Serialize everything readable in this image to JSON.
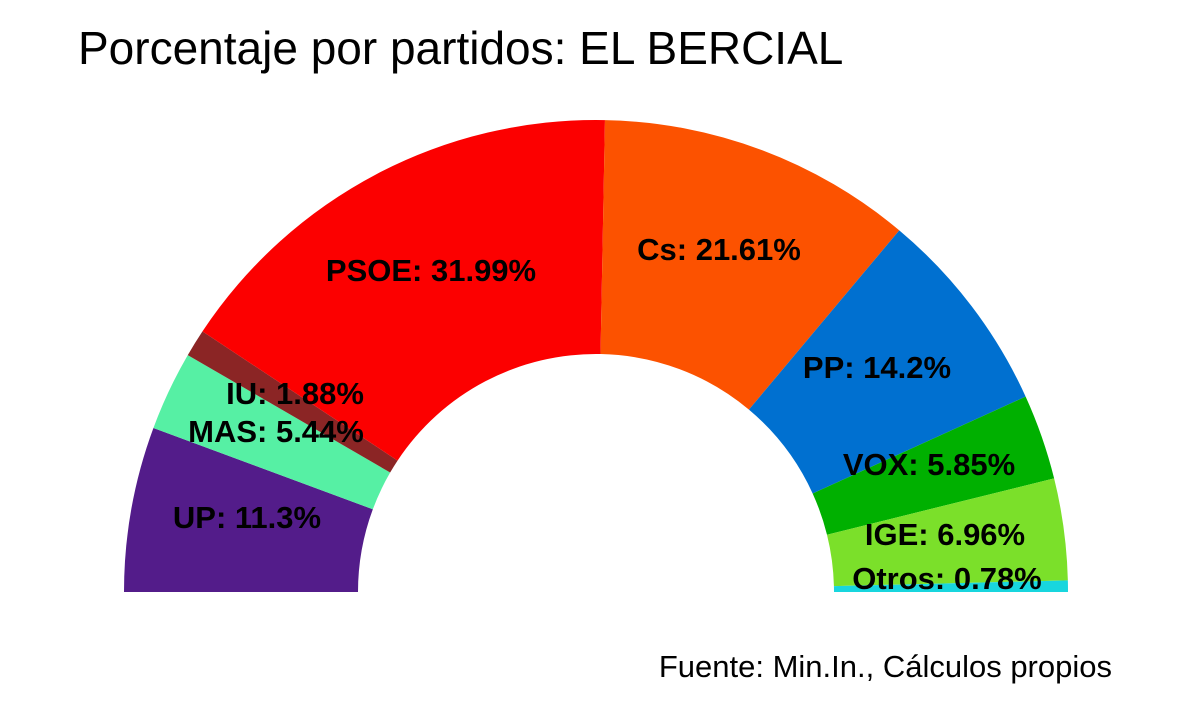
{
  "chart_data": {
    "type": "pie",
    "variant": "half-donut",
    "title": "Porcentaje por partidos: EL BERCIAL",
    "caption": "Fuente: Min.In., Cálculos propios",
    "slices": [
      {
        "name": "UP",
        "value": 11.3,
        "label": "UP: 11.3%",
        "color": "#531c8a"
      },
      {
        "name": "MAS",
        "value": 5.44,
        "label": "MAS: 5.44%",
        "color": "#56f0a4"
      },
      {
        "name": "IU",
        "value": 1.88,
        "label": "IU: 1.88%",
        "color": "#8b2525"
      },
      {
        "name": "PSOE",
        "value": 31.99,
        "label": "PSOE: 31.99%",
        "color": "#fc0000"
      },
      {
        "name": "Cs",
        "value": 21.61,
        "label": "Cs: 21.61%",
        "color": "#fc5200"
      },
      {
        "name": "PP",
        "value": 14.2,
        "label": "PP: 14.2%",
        "color": "#0070d0"
      },
      {
        "name": "VOX",
        "value": 5.85,
        "label": "VOX: 5.85%",
        "color": "#00b000"
      },
      {
        "name": "IGE",
        "value": 6.96,
        "label": "IGE: 6.96%",
        "color": "#7be02a"
      },
      {
        "name": "Otros",
        "value": 0.78,
        "label": "Otros: 0.78%",
        "color": "#18d6de"
      }
    ],
    "legend": "none"
  }
}
